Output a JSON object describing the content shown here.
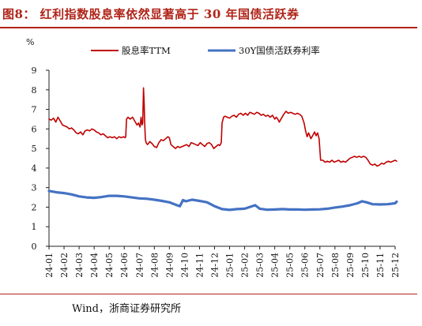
{
  "figure": {
    "title": "图8：  红利指数股息率依然显著高于 30 年国债活跃券",
    "source": "Wind，浙商证券研究所"
  },
  "colors": {
    "accent": "#b02418",
    "series_dividend": "#c00000",
    "series_bond": "#4472c4"
  },
  "chart_data": {
    "type": "line",
    "unit_label": "%",
    "ylim": [
      0,
      9
    ],
    "y_ticks": [
      0,
      1,
      2,
      3,
      4,
      5,
      6,
      7,
      8,
      9
    ],
    "x_ticks": [
      "24-01",
      "24-02",
      "24-03",
      "24-04",
      "24-05",
      "24-06",
      "24-07",
      "24-08",
      "24-09",
      "24-10",
      "24-11",
      "24-12",
      "25-01",
      "25-02",
      "25-03",
      "25-04",
      "25-05",
      "25-06",
      "25-07",
      "25-08",
      "25-09",
      "25-10",
      "25-11",
      "25-12"
    ],
    "grid": false,
    "legend_position": "top",
    "series": [
      {
        "name": "股息率TTM",
        "color": "#c00000",
        "points": [
          [
            0.0,
            6.5
          ],
          [
            0.15,
            6.45
          ],
          [
            0.3,
            6.55
          ],
          [
            0.45,
            6.35
          ],
          [
            0.6,
            6.6
          ],
          [
            0.75,
            6.4
          ],
          [
            0.9,
            6.2
          ],
          [
            1.05,
            6.15
          ],
          [
            1.2,
            6.1
          ],
          [
            1.35,
            6.0
          ],
          [
            1.5,
            6.05
          ],
          [
            1.65,
            5.95
          ],
          [
            1.8,
            5.8
          ],
          [
            1.95,
            5.75
          ],
          [
            2.1,
            5.85
          ],
          [
            2.25,
            5.7
          ],
          [
            2.4,
            5.9
          ],
          [
            2.55,
            5.95
          ],
          [
            2.7,
            5.9
          ],
          [
            2.85,
            6.0
          ],
          [
            3.0,
            5.95
          ],
          [
            3.15,
            5.85
          ],
          [
            3.3,
            5.8
          ],
          [
            3.45,
            5.7
          ],
          [
            3.6,
            5.75
          ],
          [
            3.75,
            5.65
          ],
          [
            3.9,
            5.55
          ],
          [
            4.05,
            5.6
          ],
          [
            4.2,
            5.55
          ],
          [
            4.35,
            5.6
          ],
          [
            4.5,
            5.5
          ],
          [
            4.65,
            5.6
          ],
          [
            4.8,
            5.55
          ],
          [
            4.95,
            5.6
          ],
          [
            5.05,
            5.55
          ],
          [
            5.1,
            5.6
          ],
          [
            5.15,
            6.5
          ],
          [
            5.25,
            6.6
          ],
          [
            5.4,
            6.5
          ],
          [
            5.55,
            6.6
          ],
          [
            5.7,
            6.4
          ],
          [
            5.85,
            6.2
          ],
          [
            5.95,
            6.3
          ],
          [
            6.05,
            6.1
          ],
          [
            6.12,
            6.6
          ],
          [
            6.18,
            6.2
          ],
          [
            6.23,
            6.3
          ],
          [
            6.28,
            8.1
          ],
          [
            6.33,
            7.2
          ],
          [
            6.36,
            6.3
          ],
          [
            6.4,
            5.5
          ],
          [
            6.45,
            5.3
          ],
          [
            6.55,
            5.2
          ],
          [
            6.7,
            5.35
          ],
          [
            6.85,
            5.25
          ],
          [
            7.0,
            5.1
          ],
          [
            7.15,
            5.05
          ],
          [
            7.3,
            5.3
          ],
          [
            7.45,
            5.45
          ],
          [
            7.6,
            5.4
          ],
          [
            7.75,
            5.5
          ],
          [
            7.9,
            5.6
          ],
          [
            8.0,
            5.55
          ],
          [
            8.1,
            5.2
          ],
          [
            8.25,
            5.1
          ],
          [
            8.4,
            5.0
          ],
          [
            8.55,
            5.1
          ],
          [
            8.7,
            5.05
          ],
          [
            8.85,
            5.1
          ],
          [
            9.0,
            5.15
          ],
          [
            9.15,
            5.2
          ],
          [
            9.3,
            5.1
          ],
          [
            9.45,
            5.3
          ],
          [
            9.6,
            5.25
          ],
          [
            9.75,
            5.2
          ],
          [
            9.9,
            5.15
          ],
          [
            10.05,
            5.3
          ],
          [
            10.2,
            5.2
          ],
          [
            10.35,
            5.1
          ],
          [
            10.5,
            5.25
          ],
          [
            10.65,
            5.3
          ],
          [
            10.8,
            5.2
          ],
          [
            10.95,
            5.0
          ],
          [
            11.1,
            5.1
          ],
          [
            11.25,
            5.2
          ],
          [
            11.35,
            5.15
          ],
          [
            11.45,
            5.3
          ],
          [
            11.5,
            6.3
          ],
          [
            11.6,
            6.6
          ],
          [
            11.7,
            6.65
          ],
          [
            11.85,
            6.6
          ],
          [
            12.0,
            6.55
          ],
          [
            12.15,
            6.65
          ],
          [
            12.3,
            6.7
          ],
          [
            12.45,
            6.6
          ],
          [
            12.6,
            6.75
          ],
          [
            12.75,
            6.8
          ],
          [
            12.9,
            6.7
          ],
          [
            13.05,
            6.8
          ],
          [
            13.2,
            6.7
          ],
          [
            13.35,
            6.85
          ],
          [
            13.5,
            6.8
          ],
          [
            13.65,
            6.75
          ],
          [
            13.8,
            6.85
          ],
          [
            13.95,
            6.8
          ],
          [
            14.1,
            6.7
          ],
          [
            14.25,
            6.75
          ],
          [
            14.4,
            6.65
          ],
          [
            14.55,
            6.7
          ],
          [
            14.7,
            6.6
          ],
          [
            14.85,
            6.7
          ],
          [
            15.0,
            6.5
          ],
          [
            15.1,
            6.6
          ],
          [
            15.2,
            6.5
          ],
          [
            15.3,
            6.35
          ],
          [
            15.45,
            6.55
          ],
          [
            15.6,
            6.75
          ],
          [
            15.75,
            6.9
          ],
          [
            15.9,
            6.8
          ],
          [
            16.05,
            6.85
          ],
          [
            16.2,
            6.8
          ],
          [
            16.35,
            6.75
          ],
          [
            16.5,
            6.8
          ],
          [
            16.65,
            6.75
          ],
          [
            16.8,
            6.65
          ],
          [
            16.95,
            6.3
          ],
          [
            17.05,
            5.9
          ],
          [
            17.15,
            5.6
          ],
          [
            17.25,
            5.8
          ],
          [
            17.4,
            5.5
          ],
          [
            17.55,
            5.7
          ],
          [
            17.65,
            5.85
          ],
          [
            17.75,
            5.65
          ],
          [
            17.85,
            5.8
          ],
          [
            17.95,
            5.5
          ],
          [
            18.05,
            4.4
          ],
          [
            18.2,
            4.4
          ],
          [
            18.35,
            4.3
          ],
          [
            18.5,
            4.35
          ],
          [
            18.65,
            4.3
          ],
          [
            18.8,
            4.4
          ],
          [
            18.95,
            4.3
          ],
          [
            19.1,
            4.35
          ],
          [
            19.25,
            4.4
          ],
          [
            19.4,
            4.3
          ],
          [
            19.55,
            4.35
          ],
          [
            19.7,
            4.3
          ],
          [
            19.85,
            4.4
          ],
          [
            20.0,
            4.5
          ],
          [
            20.15,
            4.55
          ],
          [
            20.3,
            4.6
          ],
          [
            20.45,
            4.55
          ],
          [
            20.6,
            4.6
          ],
          [
            20.75,
            4.55
          ],
          [
            20.9,
            4.6
          ],
          [
            21.05,
            4.55
          ],
          [
            21.2,
            4.4
          ],
          [
            21.35,
            4.2
          ],
          [
            21.5,
            4.15
          ],
          [
            21.65,
            4.2
          ],
          [
            21.8,
            4.1
          ],
          [
            21.95,
            4.15
          ],
          [
            22.1,
            4.25
          ],
          [
            22.25,
            4.2
          ],
          [
            22.4,
            4.3
          ],
          [
            22.55,
            4.35
          ],
          [
            22.7,
            4.3
          ],
          [
            22.85,
            4.35
          ],
          [
            23.0,
            4.4
          ],
          [
            23.1,
            4.35
          ]
        ]
      },
      {
        "name": "30Y国债活跃券利率",
        "color": "#4472c4",
        "points": [
          [
            0.0,
            2.83
          ],
          [
            0.5,
            2.76
          ],
          [
            1.0,
            2.72
          ],
          [
            1.5,
            2.65
          ],
          [
            2.0,
            2.55
          ],
          [
            2.5,
            2.5
          ],
          [
            3.0,
            2.48
          ],
          [
            3.5,
            2.52
          ],
          [
            4.0,
            2.58
          ],
          [
            4.5,
            2.58
          ],
          [
            5.0,
            2.55
          ],
          [
            5.5,
            2.5
          ],
          [
            6.0,
            2.45
          ],
          [
            6.5,
            2.43
          ],
          [
            7.0,
            2.38
          ],
          [
            7.5,
            2.32
          ],
          [
            8.0,
            2.25
          ],
          [
            8.5,
            2.1
          ],
          [
            8.7,
            2.05
          ],
          [
            8.9,
            2.36
          ],
          [
            9.1,
            2.3
          ],
          [
            9.5,
            2.38
          ],
          [
            10.0,
            2.32
          ],
          [
            10.5,
            2.25
          ],
          [
            11.0,
            2.05
          ],
          [
            11.5,
            1.9
          ],
          [
            12.0,
            1.86
          ],
          [
            12.5,
            1.9
          ],
          [
            13.0,
            1.92
          ],
          [
            13.4,
            2.02
          ],
          [
            13.7,
            2.1
          ],
          [
            14.0,
            1.92
          ],
          [
            14.5,
            1.87
          ],
          [
            15.0,
            1.88
          ],
          [
            15.5,
            1.9
          ],
          [
            16.0,
            1.88
          ],
          [
            16.5,
            1.88
          ],
          [
            17.0,
            1.87
          ],
          [
            17.5,
            1.88
          ],
          [
            18.0,
            1.89
          ],
          [
            18.5,
            1.92
          ],
          [
            19.0,
            1.98
          ],
          [
            19.5,
            2.03
          ],
          [
            20.0,
            2.1
          ],
          [
            20.5,
            2.2
          ],
          [
            20.8,
            2.3
          ],
          [
            21.1,
            2.25
          ],
          [
            21.5,
            2.15
          ],
          [
            22.0,
            2.14
          ],
          [
            22.5,
            2.15
          ],
          [
            23.0,
            2.2
          ],
          [
            23.1,
            2.28
          ]
        ]
      }
    ]
  }
}
